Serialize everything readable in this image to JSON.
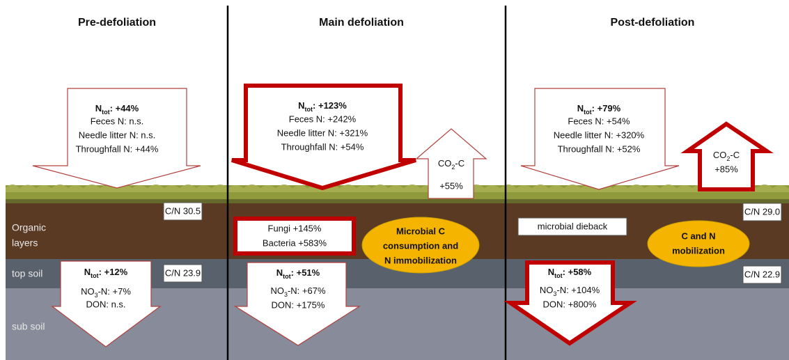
{
  "panels": [
    {
      "title": "Pre-defoliation",
      "input": [
        [
          {
            "text": "N"
          },
          {
            "sub": "tot"
          },
          {
            "text": ": +44%"
          }
        ],
        "Feces N: n.s.",
        "Needle litter N: n.s.",
        "Throughfall N: +44%"
      ],
      "organic_cn": "C/N 30.5",
      "topsoil_cn": "C/N 23.9",
      "leaching": [
        [
          {
            "text": "N"
          },
          {
            "sub": "tot"
          },
          {
            "text": ": +12%"
          }
        ],
        [
          {
            "text": "NO"
          },
          {
            "sub": "3"
          },
          {
            "text": "-N: +7%"
          }
        ],
        "DON: n.s."
      ]
    },
    {
      "title": "Main defoliation",
      "input": [
        [
          {
            "text": "N"
          },
          {
            "sub": "tot"
          },
          {
            "text": ": +123%"
          }
        ],
        "Feces N: +242%",
        "Needle litter N: +321%",
        "Throughfall N: +54%"
      ],
      "co2": [
        [
          {
            "text": "CO"
          },
          {
            "sub": "2"
          },
          {
            "text": "-C"
          }
        ],
        "+55%"
      ],
      "microbes": [
        "Fungi +145%",
        "Bacteria +583%"
      ],
      "process": [
        "Microbial C",
        "consumption and",
        "N immobilization"
      ],
      "leaching": [
        [
          {
            "text": "N"
          },
          {
            "sub": "tot"
          },
          {
            "text": ": +51%"
          }
        ],
        [
          {
            "text": "NO"
          },
          {
            "sub": "3"
          },
          {
            "text": "-N: +67%"
          }
        ],
        "DON: +175%"
      ]
    },
    {
      "title": "Post-defoliation",
      "input": [
        [
          {
            "text": "N"
          },
          {
            "sub": "tot"
          },
          {
            "text": ": +79%"
          }
        ],
        "Feces N: +54%",
        "Needle litter N: +320%",
        "Throughfall N: +52%"
      ],
      "co2": [
        [
          {
            "text": "CO"
          },
          {
            "sub": "2"
          },
          {
            "text": "-C"
          }
        ],
        "+85%"
      ],
      "organic_cn": "C/N 29.0",
      "microbes": [
        "microbial dieback"
      ],
      "process": [
        "C and N",
        "mobilization"
      ],
      "topsoil_cn": "C/N 22.9",
      "leaching": [
        [
          {
            "text": "N"
          },
          {
            "sub": "tot"
          },
          {
            "text": ": +58%"
          }
        ],
        [
          {
            "text": "NO"
          },
          {
            "sub": "3"
          },
          {
            "text": "-N: +104%"
          }
        ],
        "DON: +800%"
      ]
    }
  ],
  "layers": {
    "organic": [
      "Organic",
      "layers"
    ],
    "top_soil": "top soil",
    "sub_soil": "sub soil"
  }
}
